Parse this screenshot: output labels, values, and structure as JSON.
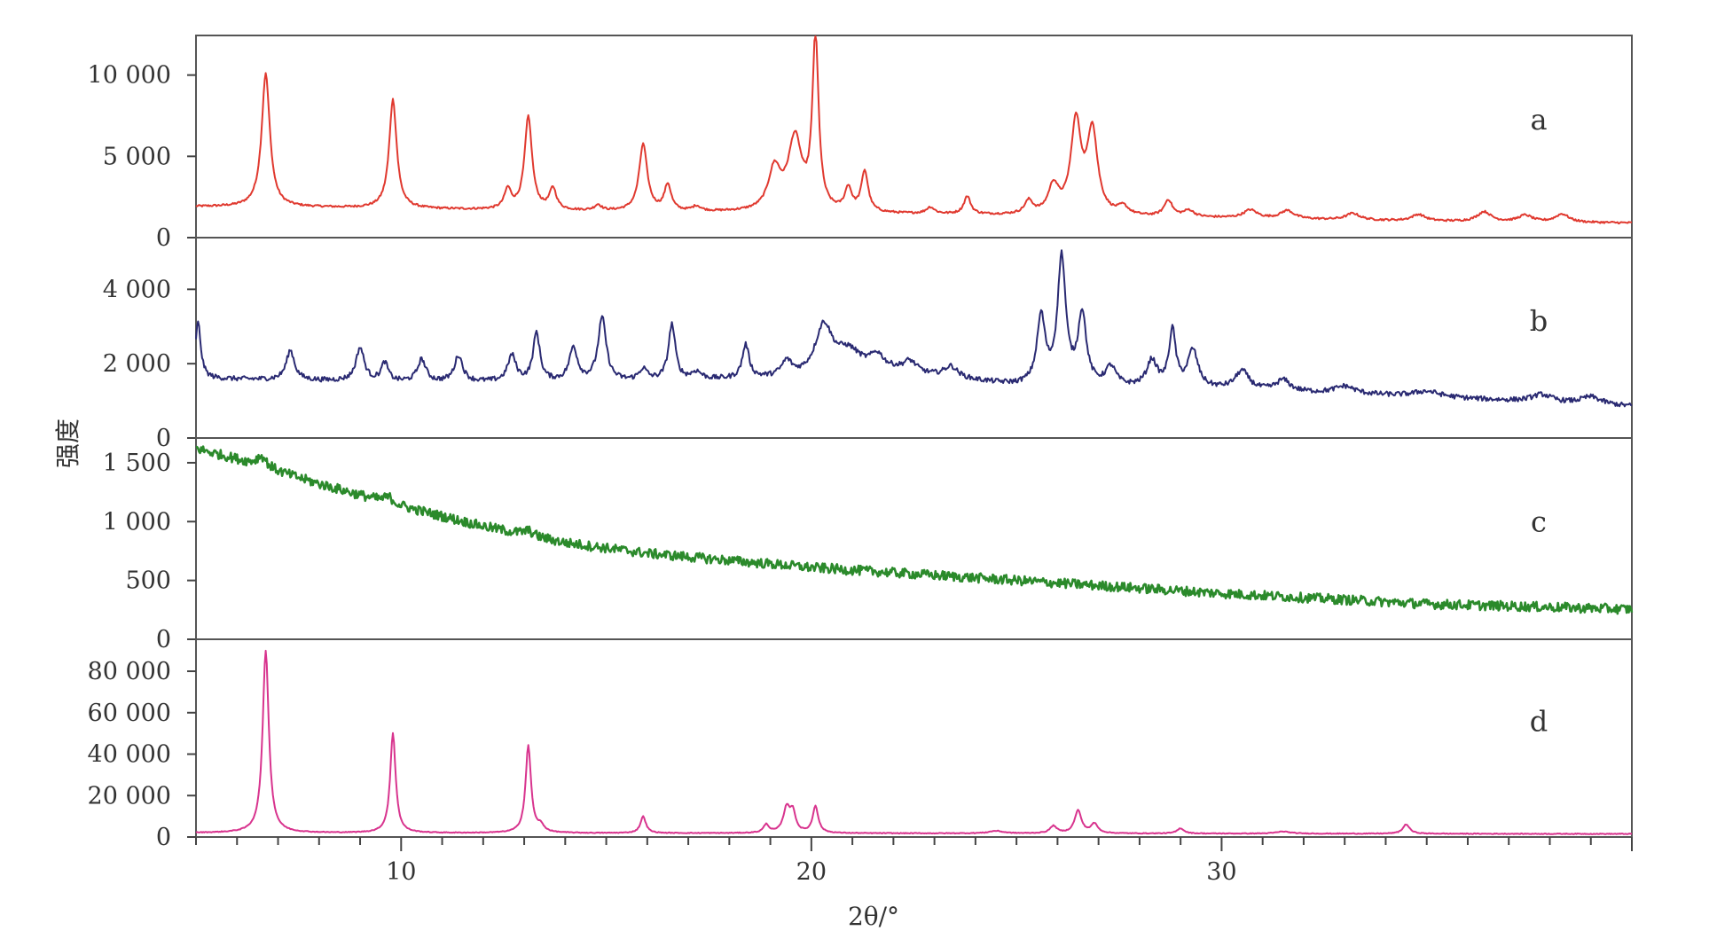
{
  "chart_data": {
    "type": "line",
    "xlabel": "2θ/°",
    "ylabel": "强度",
    "xlim": [
      5,
      40
    ],
    "x_ticks": [
      10,
      20,
      30
    ],
    "grid": false,
    "panels": [
      {
        "label": "a",
        "color": "#e0392f",
        "stroke_width": 2,
        "noise": 0.01,
        "ylim": [
          0,
          12000
        ],
        "y_ticks": [
          {
            "v": 0,
            "t": "0"
          },
          {
            "v": 5000,
            "t": "5 000"
          },
          {
            "v": 10000,
            "t": "10 000"
          }
        ],
        "baseline": [
          [
            5,
            1900
          ],
          [
            8,
            1850
          ],
          [
            12,
            1700
          ],
          [
            15,
            1600
          ],
          [
            20,
            1500
          ],
          [
            25,
            1350
          ],
          [
            30,
            1200
          ],
          [
            35,
            1000
          ],
          [
            40,
            900
          ]
        ],
        "peaks": [
          [
            6.7,
            8200,
            0.12
          ],
          [
            9.8,
            6700,
            0.11
          ],
          [
            12.6,
            1200,
            0.1
          ],
          [
            13.1,
            5700,
            0.11
          ],
          [
            13.7,
            1300,
            0.1
          ],
          [
            14.8,
            350,
            0.1
          ],
          [
            15.9,
            4100,
            0.12
          ],
          [
            16.5,
            1600,
            0.1
          ],
          [
            17.2,
            300,
            0.12
          ],
          [
            19.1,
            2500,
            0.18
          ],
          [
            19.6,
            4400,
            0.2
          ],
          [
            20.1,
            10600,
            0.09
          ],
          [
            20.9,
            1400,
            0.1
          ],
          [
            21.3,
            2500,
            0.1
          ],
          [
            22.9,
            400,
            0.12
          ],
          [
            23.8,
            1100,
            0.1
          ],
          [
            25.3,
            800,
            0.12
          ],
          [
            25.9,
            1700,
            0.15
          ],
          [
            26.45,
            5600,
            0.15
          ],
          [
            26.85,
            5100,
            0.15
          ],
          [
            27.6,
            500,
            0.15
          ],
          [
            28.7,
            1000,
            0.12
          ],
          [
            29.2,
            400,
            0.15
          ],
          [
            30.7,
            500,
            0.2
          ],
          [
            31.6,
            500,
            0.2
          ],
          [
            33.2,
            400,
            0.2
          ],
          [
            34.8,
            400,
            0.2
          ],
          [
            36.4,
            600,
            0.2
          ],
          [
            37.4,
            400,
            0.2
          ],
          [
            38.3,
            500,
            0.2
          ]
        ]
      },
      {
        "label": "b",
        "color": "#2a2a72",
        "stroke_width": 2,
        "noise": 0.025,
        "ylim": [
          0,
          5200
        ],
        "y_ticks": [
          {
            "v": 0,
            "t": "0"
          },
          {
            "v": 2000,
            "t": "2 000"
          },
          {
            "v": 4000,
            "t": "4 000"
          }
        ],
        "baseline": [
          [
            5,
            1600
          ],
          [
            10,
            1500
          ],
          [
            15,
            1500
          ],
          [
            20,
            1600
          ],
          [
            22,
            1750
          ],
          [
            25,
            1400
          ],
          [
            30,
            1300
          ],
          [
            35,
            1100
          ],
          [
            40,
            850
          ]
        ],
        "peaks": [
          [
            5.05,
            1500,
            0.08
          ],
          [
            7.3,
            800,
            0.12
          ],
          [
            9.0,
            900,
            0.12
          ],
          [
            9.6,
            500,
            0.1
          ],
          [
            10.5,
            600,
            0.12
          ],
          [
            11.4,
            700,
            0.12
          ],
          [
            12.7,
            700,
            0.12
          ],
          [
            13.3,
            1300,
            0.1
          ],
          [
            14.2,
            900,
            0.12
          ],
          [
            14.9,
            1700,
            0.12
          ],
          [
            15.9,
            300,
            0.12
          ],
          [
            16.6,
            1500,
            0.1
          ],
          [
            17.2,
            200,
            0.15
          ],
          [
            18.4,
            900,
            0.1
          ],
          [
            19.4,
            400,
            0.15
          ],
          [
            20.3,
            1300,
            0.25
          ],
          [
            20.9,
            600,
            0.4
          ],
          [
            21.6,
            400,
            0.2
          ],
          [
            22.4,
            300,
            0.2
          ],
          [
            23.4,
            300,
            0.2
          ],
          [
            25.6,
            1800,
            0.12
          ],
          [
            26.1,
            3400,
            0.12
          ],
          [
            26.6,
            1900,
            0.12
          ],
          [
            27.3,
            500,
            0.15
          ],
          [
            28.3,
            700,
            0.15
          ],
          [
            28.8,
            1500,
            0.1
          ],
          [
            29.3,
            1000,
            0.15
          ],
          [
            30.5,
            500,
            0.2
          ],
          [
            31.5,
            300,
            0.2
          ],
          [
            33.0,
            200,
            0.3
          ],
          [
            35.0,
            150,
            0.4
          ],
          [
            37.8,
            200,
            0.3
          ],
          [
            39.0,
            200,
            0.3
          ]
        ]
      },
      {
        "label": "c",
        "color": "#2b8a2b",
        "stroke_width": 2.6,
        "noise": 0.05,
        "ylim": [
          0,
          1650
        ],
        "y_ticks": [
          {
            "v": 0,
            "t": "0"
          },
          {
            "v": 500,
            "t": "500"
          },
          {
            "v": 1000,
            "t": "1 000"
          },
          {
            "v": 1500,
            "t": "1 500"
          }
        ],
        "baseline": [
          [
            5,
            1620
          ],
          [
            6,
            1530
          ],
          [
            8,
            1320
          ],
          [
            10,
            1130
          ],
          [
            12,
            960
          ],
          [
            14,
            820
          ],
          [
            16,
            730
          ],
          [
            20,
            610
          ],
          [
            25,
            500
          ],
          [
            30,
            390
          ],
          [
            35,
            300
          ],
          [
            40,
            255
          ]
        ],
        "peaks": [
          [
            6.6,
            90,
            0.15
          ],
          [
            9.7,
            50,
            0.15
          ],
          [
            13.1,
            40,
            0.15
          ]
        ]
      },
      {
        "label": "d",
        "color": "#d8348e",
        "stroke_width": 2,
        "noise": 0.004,
        "ylim": [
          0,
          92000
        ],
        "y_ticks": [
          {
            "v": 0,
            "t": "0"
          },
          {
            "v": 20000,
            "t": "20 000"
          },
          {
            "v": 40000,
            "t": "40 000"
          },
          {
            "v": 60000,
            "t": "60 000"
          },
          {
            "v": 80000,
            "t": "80 000"
          }
        ],
        "baseline": [
          [
            5,
            2000
          ],
          [
            20,
            1800
          ],
          [
            40,
            1500
          ]
        ],
        "peaks": [
          [
            6.7,
            88000,
            0.09
          ],
          [
            9.8,
            48000,
            0.08
          ],
          [
            13.1,
            42000,
            0.08
          ],
          [
            13.4,
            3000,
            0.1
          ],
          [
            15.9,
            8000,
            0.08
          ],
          [
            18.9,
            4000,
            0.08
          ],
          [
            19.4,
            12000,
            0.1
          ],
          [
            19.55,
            9000,
            0.08
          ],
          [
            20.1,
            13000,
            0.08
          ],
          [
            25.9,
            3500,
            0.1
          ],
          [
            26.5,
            11000,
            0.1
          ],
          [
            26.9,
            4500,
            0.1
          ],
          [
            29.0,
            2500,
            0.1
          ],
          [
            34.5,
            4500,
            0.1
          ],
          [
            24.5,
            1200,
            0.2
          ],
          [
            31.5,
            1000,
            0.2
          ]
        ]
      }
    ]
  }
}
